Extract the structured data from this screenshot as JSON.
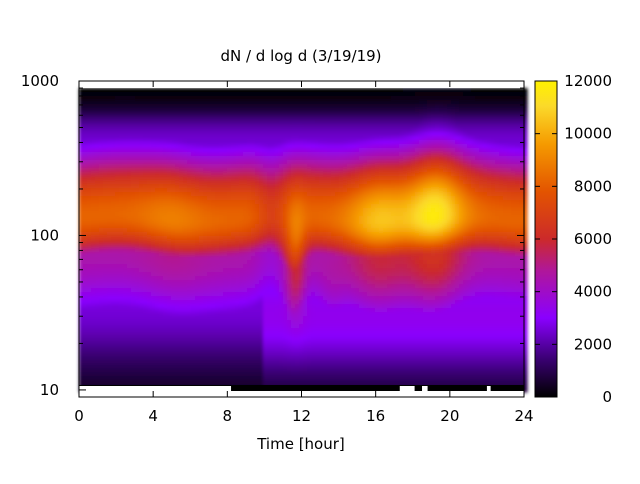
{
  "chart_data": {
    "type": "heatmap",
    "title": "dN / d log d (3/19/19)",
    "xlabel": "Time [hour]",
    "ylabel": "",
    "xlim": [
      0,
      24
    ],
    "ylim": [
      9,
      1000
    ],
    "yscale": "log",
    "x_ticks": [
      0,
      4,
      8,
      12,
      16,
      20,
      24
    ],
    "y_ticks": [
      10,
      100,
      1000
    ],
    "colorbar": {
      "ticks": [
        0,
        2000,
        4000,
        6000,
        8000,
        10000,
        12000
      ],
      "range": [
        0,
        12000
      ],
      "colormap": [
        "#000000",
        "#3a0072",
        "#8a00ff",
        "#cc2a66",
        "#cc3300",
        "#f07a00",
        "#fce83a",
        "#fff200"
      ]
    },
    "features": {
      "band_low_diameter": 60,
      "band_high_diameter": 280,
      "peak_diameter": 130,
      "peak_value_morning": 9000,
      "peak_value_evening": 11500,
      "dip_time_hour": 11.5,
      "dip_min_diameter": 30
    },
    "missing_data_at_10nm": [
      [
        0,
        8.2
      ],
      [
        17.3,
        18.1
      ],
      [
        18.5,
        18.8
      ],
      [
        22,
        22.2
      ]
    ]
  }
}
